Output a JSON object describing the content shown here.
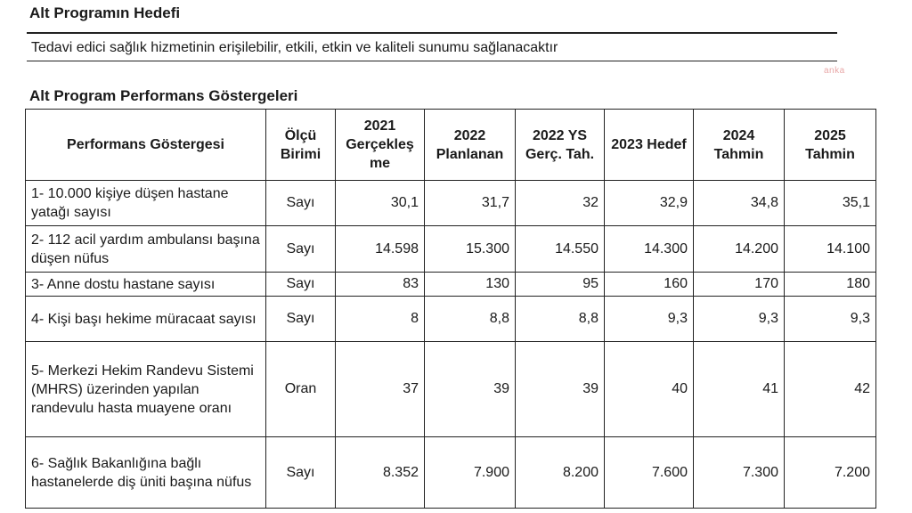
{
  "header": {
    "section_title": "Alt Programın Hedefi",
    "goal_text": "Tedavi edici sağlık hizmetinin erişilebilir, etkili, etkin ve kaliteli sunumu sağlanacaktır",
    "watermark": "anka",
    "table_title": "Alt Program Performans Göstergeleri"
  },
  "table": {
    "columns": [
      "Performans Göstergesi",
      "Ölçü Birimi",
      "2021 Gerçekleş me",
      "2022 Planlanan",
      "2022 YS Gerç. Tah.",
      "2023 Hedef",
      "2024 Tahmin",
      "2025 Tahmin"
    ],
    "rows": [
      {
        "indicator": "1- 10.000 kişiye düşen hastane yatağı sayısı",
        "unit": "Sayı",
        "values": [
          "30,1",
          "31,7",
          "32",
          "32,9",
          "34,8",
          "35,1"
        ]
      },
      {
        "indicator": "2- 112 acil yardım ambulansı başına düşen nüfus",
        "unit": "Sayı",
        "values": [
          "14.598",
          "15.300",
          "14.550",
          "14.300",
          "14.200",
          "14.100"
        ]
      },
      {
        "indicator": "3- Anne dostu hastane sayısı",
        "unit": "Sayı",
        "values": [
          "83",
          "130",
          "95",
          "160",
          "170",
          "180"
        ]
      },
      {
        "indicator": "4- Kişi başı hekime müracaat sayısı",
        "unit": "Sayı",
        "values": [
          "8",
          "8,8",
          "8,8",
          "9,3",
          "9,3",
          "9,3"
        ]
      },
      {
        "indicator": "5- Merkezi Hekim Randevu Sistemi (MHRS) üzerinden yapılan randevulu hasta muayene oranı",
        "unit": "Oran",
        "values": [
          "37",
          "39",
          "39",
          "40",
          "41",
          "42"
        ]
      },
      {
        "indicator": "6- Sağlık Bakanlığına bağlı hastanelerde diş üniti başına nüfus",
        "unit": "Sayı",
        "values": [
          "8.352",
          "7.900",
          "8.200",
          "7.600",
          "7.300",
          "7.200"
        ]
      }
    ]
  }
}
